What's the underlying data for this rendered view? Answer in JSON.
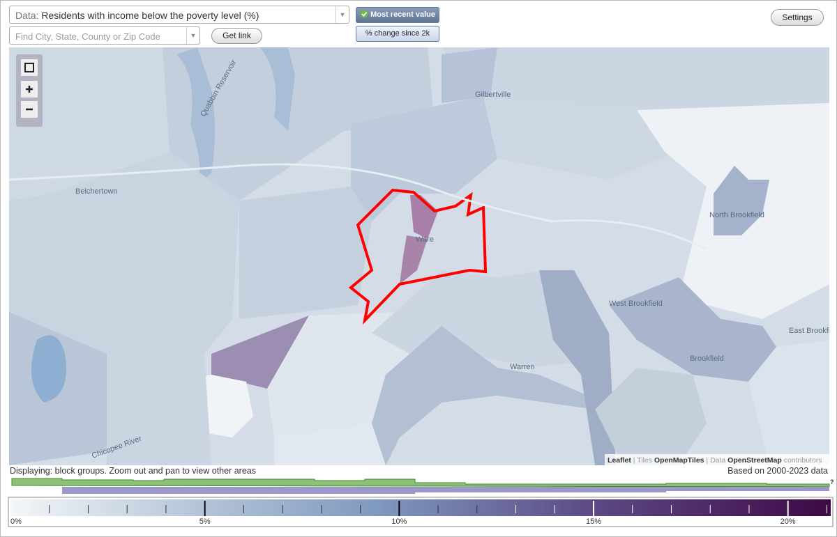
{
  "header": {
    "data_label": "Data:",
    "data_value": "Residents with income below the poverty level (%)",
    "search_placeholder": "Find City, State, County or Zip Code",
    "get_link": "Get link",
    "most_recent": "Most recent value",
    "change_since": "% change since 2k",
    "settings": "Settings"
  },
  "map": {
    "places": [
      "Belchertown",
      "Gilbertville",
      "Ware",
      "North Brookfield",
      "West Brookfield",
      "Warren",
      "Brookfield",
      "East Brookfield",
      "Quabbin Reservoir",
      "Chicopee River"
    ],
    "attribution": {
      "leaflet": "Leaflet",
      "tiles_label": "Tiles",
      "tiles": "OpenMapTiles",
      "data_label": "Data",
      "data": "OpenStreetMap",
      "contributors": "contributors"
    }
  },
  "footer": {
    "displaying": "Displaying: block groups. Zoom out and pan to view other areas",
    "based_on": "Based on 2000-2023 data",
    "help": "?"
  },
  "legend": {
    "range": [
      0,
      21.1
    ],
    "ticks": [
      {
        "value": 0,
        "label": "0%"
      },
      {
        "value": 5,
        "label": "5%"
      },
      {
        "value": 10,
        "label": "10%"
      },
      {
        "value": 15,
        "label": "15%"
      },
      {
        "value": 20,
        "label": "20%"
      }
    ],
    "minor_ticks": [
      1,
      2,
      3,
      4,
      6,
      7,
      8,
      9,
      11,
      12,
      13,
      14,
      16,
      17,
      18,
      19,
      21
    ]
  }
}
